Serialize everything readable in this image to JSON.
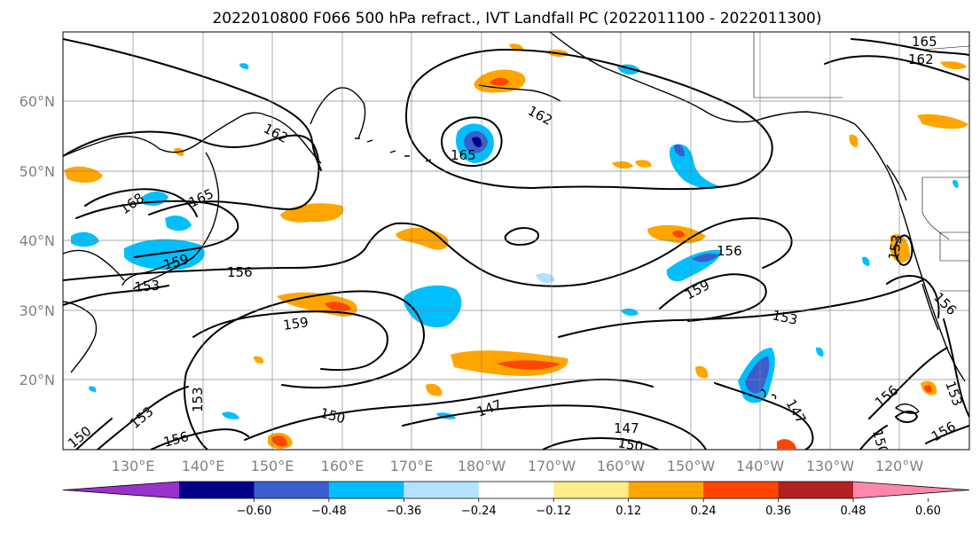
{
  "title": "2022010800 F066 500 hPa refract., IVT Landfall PC (2022011100 - 2022011300)",
  "lat_labels": [
    "60°N",
    "50°N",
    "40°N",
    "30°N",
    "20°N"
  ],
  "lon_labels": [
    "130°E",
    "140°E",
    "150°E",
    "160°E",
    "170°E",
    "180°W",
    "170°W",
    "160°W",
    "150°W",
    "140°W",
    "130°W",
    "120°W"
  ],
  "contour_labels": [
    "165",
    "162",
    "162",
    "162",
    "165",
    "168",
    "165",
    "156",
    "159",
    "156",
    "159",
    "159",
    "153",
    "153",
    "147",
    "150",
    "150",
    "153",
    "147",
    "147",
    "150",
    "156",
    "156",
    "156",
    "153",
    "156",
    "153",
    "150",
    "153"
  ],
  "colorbar": {
    "ticks": [
      "−0.60",
      "−0.48",
      "−0.36",
      "−0.24",
      "−0.12",
      "0.12",
      "0.24",
      "0.36",
      "0.48",
      "0.60"
    ],
    "colors": [
      "#9932cc",
      "#00008b",
      "#3a5fcd",
      "#00bfff",
      "#b2e2ff",
      "#ffffff",
      "#ffed8a",
      "#ffa500",
      "#ff4500",
      "#b22222",
      "#ff88aa"
    ]
  },
  "chart_data": {
    "type": "contour",
    "levels": [
      -0.6,
      -0.48,
      -0.36,
      -0.24,
      -0.12,
      0.12,
      0.24,
      0.36,
      0.48,
      0.6
    ],
    "contour_values": [
      147,
      150,
      153,
      156,
      159,
      162,
      165,
      168
    ],
    "lat_range": [
      10,
      70
    ],
    "lon_range": [
      120,
      250
    ]
  }
}
